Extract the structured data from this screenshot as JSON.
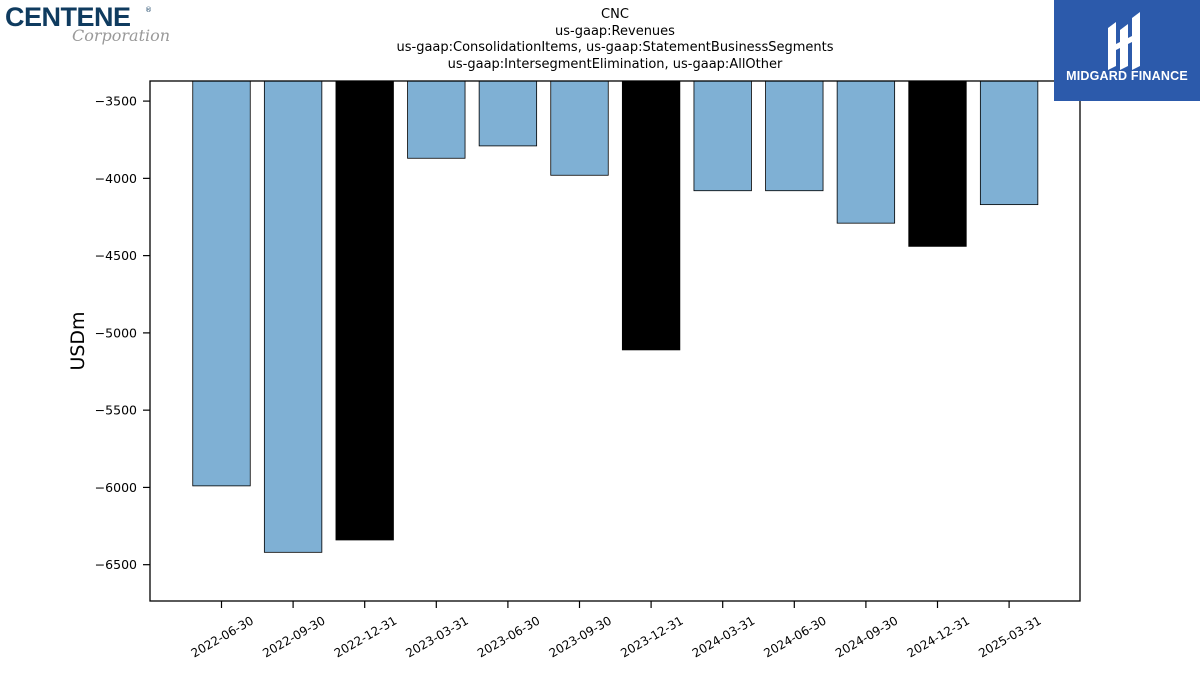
{
  "logos": {
    "left_main": "CENTENE",
    "left_reg": "®",
    "left_sub": "Corporation",
    "right_text": "MIDGARD FINANCE",
    "right_bg": "#2c5aab"
  },
  "chart_data": {
    "type": "bar",
    "title_lines": [
      "CNC",
      "us-gaap:Revenues",
      "us-gaap:ConsolidationItems, us-gaap:StatementBusinessSegments",
      "us-gaap:IntersegmentElimination, us-gaap:AllOther"
    ],
    "ylabel": "USDm",
    "xlabel": "",
    "categories": [
      "2022-06-30",
      "2022-09-30",
      "2022-12-31",
      "2023-03-31",
      "2023-06-30",
      "2023-09-30",
      "2023-12-31",
      "2024-03-31",
      "2024-06-30",
      "2024-09-30",
      "2024-12-31",
      "2025-03-31"
    ],
    "values": [
      -5990,
      -6420,
      -6340,
      -3870,
      -3790,
      -3980,
      -5110,
      -4080,
      -4080,
      -4290,
      -4440,
      -4170
    ],
    "bar_colors": [
      "#7fb0d4",
      "#7fb0d4",
      "#000000",
      "#7fb0d4",
      "#7fb0d4",
      "#7fb0d4",
      "#000000",
      "#7fb0d4",
      "#7fb0d4",
      "#7fb0d4",
      "#000000",
      "#7fb0d4"
    ],
    "yticks": [
      -3500,
      -4000,
      -4500,
      -5000,
      -5500,
      -6000,
      -6500
    ],
    "ylim": [
      -6735,
      -3370
    ],
    "grid": false
  }
}
